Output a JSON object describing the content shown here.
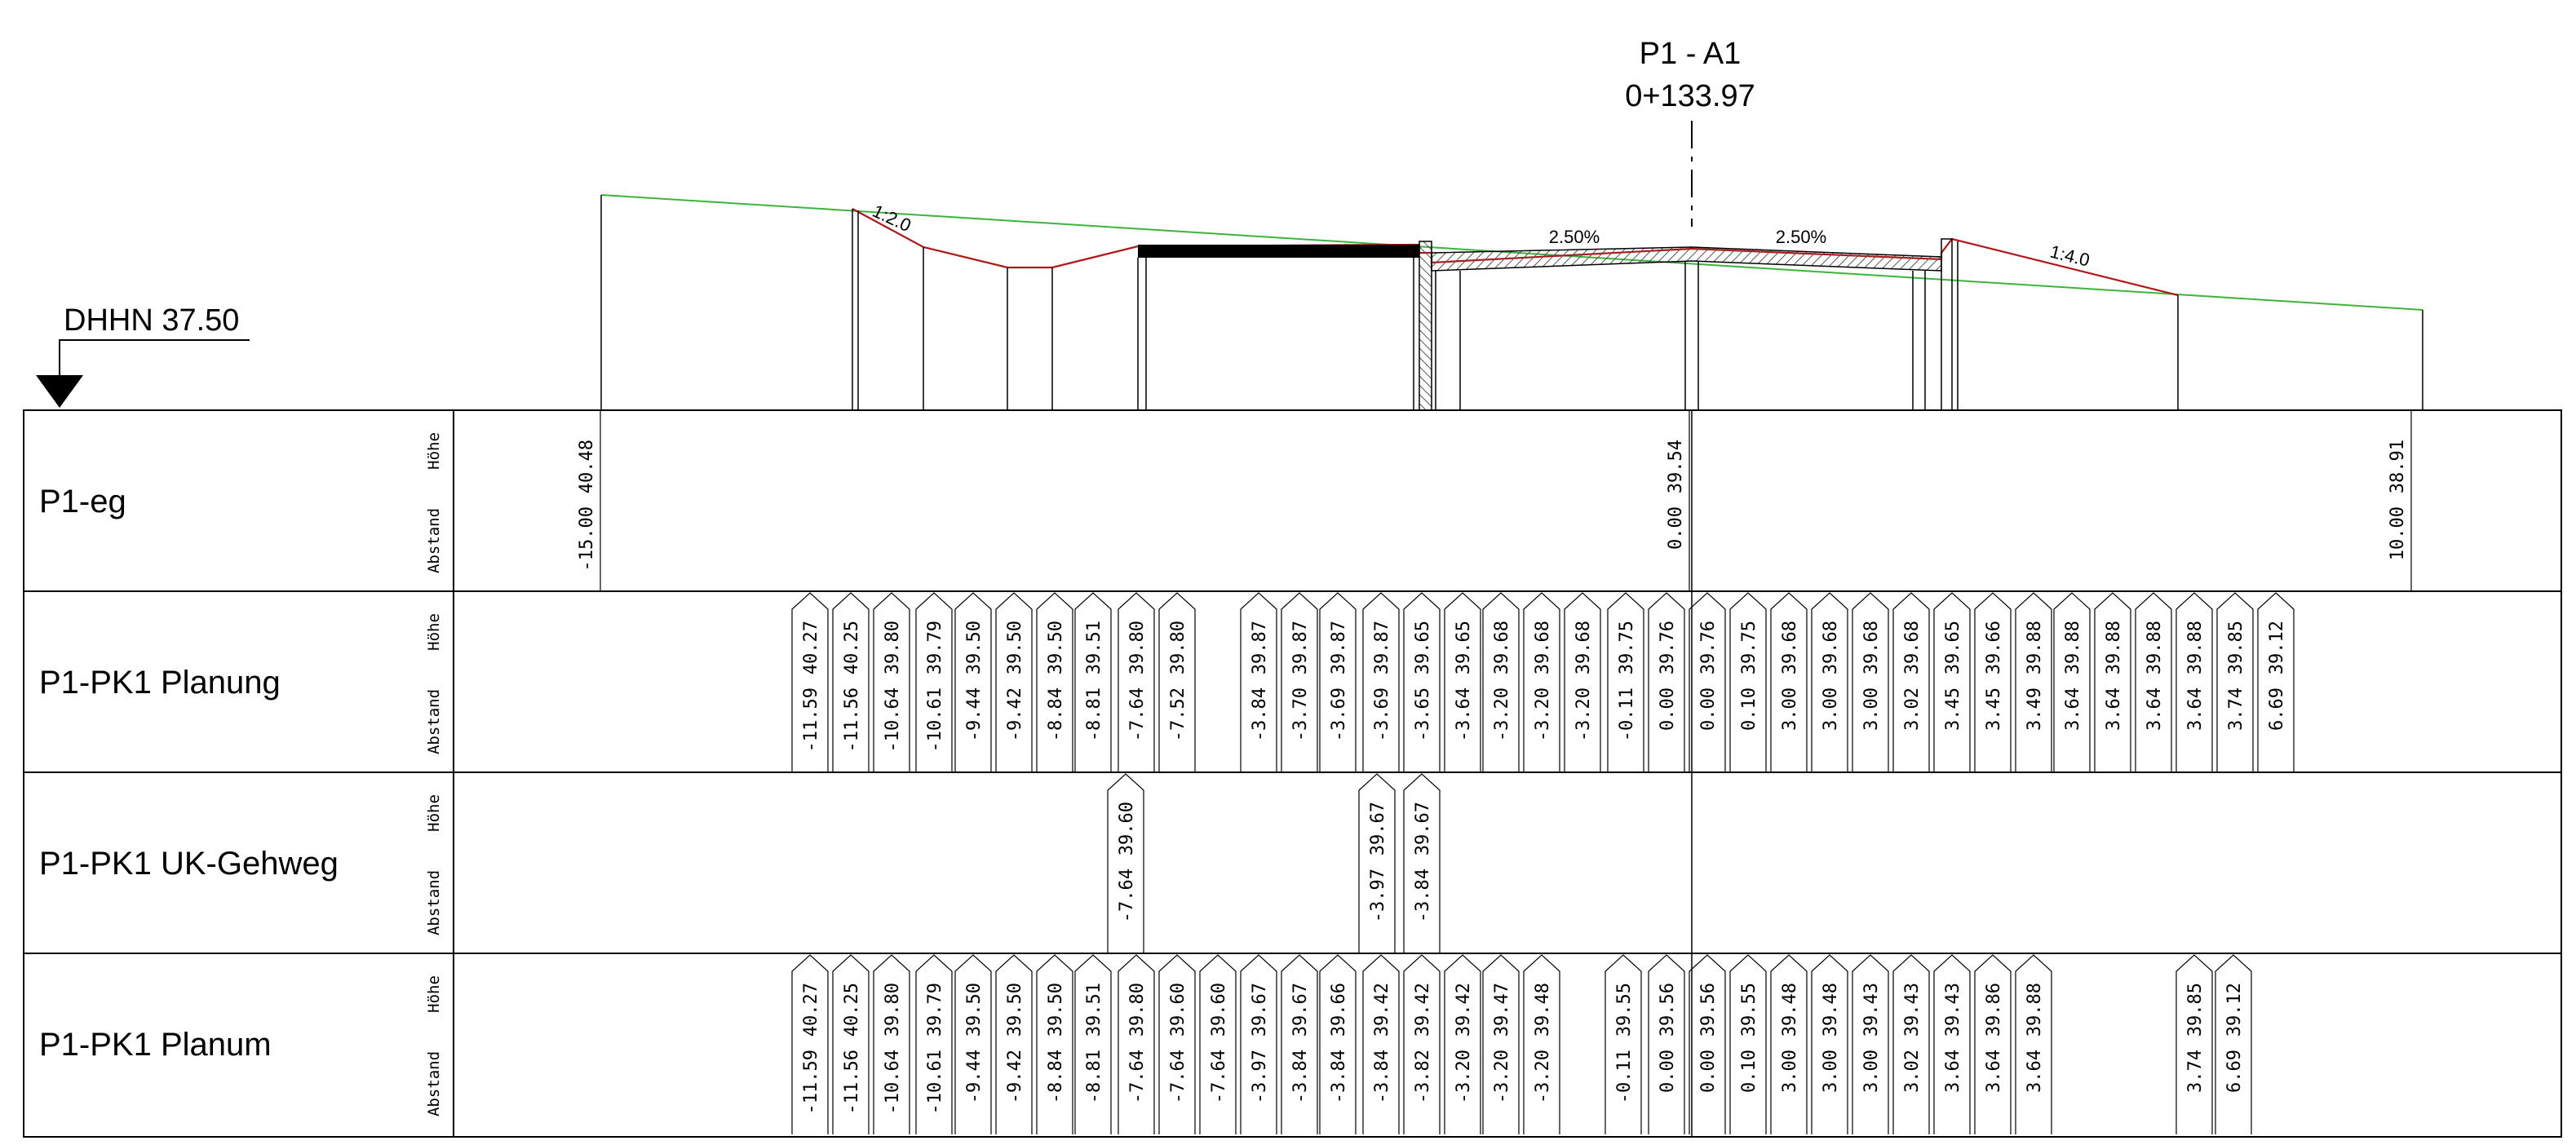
{
  "header": {
    "station_name": "P1 - A1",
    "station_value": "0+133.97"
  },
  "datum": {
    "label": "DHHN  37.50"
  },
  "profile": {
    "slope_labels": [
      "1:2.0",
      "2.50%",
      "2.50%",
      "1:4.0"
    ]
  },
  "band_labels": {
    "height": "Höhe",
    "distance": "Abstand"
  },
  "rows": [
    {
      "name": "P1-eg",
      "pairs": [
        [
          "-15.00",
          "40.48"
        ],
        [
          "0.00",
          "39.54"
        ],
        [
          "10.00",
          "38.91"
        ]
      ]
    },
    {
      "name": "P1-PK1 Planung",
      "pairs": [
        [
          "-11.59",
          "40.27"
        ],
        [
          "-11.56",
          "40.25"
        ],
        [
          "-10.64",
          "39.80"
        ],
        [
          "-10.61",
          "39.79"
        ],
        [
          "-9.44",
          "39.50"
        ],
        [
          "-9.42",
          "39.50"
        ],
        [
          "-8.84",
          "39.50"
        ],
        [
          "-8.81",
          "39.51"
        ],
        [
          "-7.64",
          "39.80"
        ],
        [
          "-7.52",
          "39.80"
        ],
        [
          "-3.84",
          "39.87"
        ],
        [
          "-3.70",
          "39.87"
        ],
        [
          "-3.69",
          "39.87"
        ],
        [
          "-3.69",
          "39.87"
        ],
        [
          "-3.65",
          "39.65"
        ],
        [
          "-3.64",
          "39.65"
        ],
        [
          "-3.20",
          "39.68"
        ],
        [
          "-3.20",
          "39.68"
        ],
        [
          "-3.20",
          "39.68"
        ],
        [
          "-0.11",
          "39.75"
        ],
        [
          "0.00",
          "39.76"
        ],
        [
          "0.00",
          "39.76"
        ],
        [
          "0.10",
          "39.75"
        ],
        [
          "3.00",
          "39.68"
        ],
        [
          "3.00",
          "39.68"
        ],
        [
          "3.00",
          "39.68"
        ],
        [
          "3.02",
          "39.68"
        ],
        [
          "3.45",
          "39.65"
        ],
        [
          "3.45",
          "39.66"
        ],
        [
          "3.49",
          "39.88"
        ],
        [
          "3.64",
          "39.88"
        ],
        [
          "3.64",
          "39.88"
        ],
        [
          "3.64",
          "39.88"
        ],
        [
          "3.64",
          "39.88"
        ],
        [
          "3.74",
          "39.85"
        ],
        [
          "6.69",
          "39.12"
        ]
      ]
    },
    {
      "name": "P1-PK1 UK-Gehweg",
      "pairs": [
        [
          "-7.64",
          "39.60"
        ],
        [
          "-3.97",
          "39.67"
        ],
        [
          "-3.84",
          "39.67"
        ]
      ]
    },
    {
      "name": "P1-PK1 Planum",
      "pairs": [
        [
          "-11.59",
          "40.27"
        ],
        [
          "-11.56",
          "40.25"
        ],
        [
          "-10.64",
          "39.80"
        ],
        [
          "-10.61",
          "39.79"
        ],
        [
          "-9.44",
          "39.50"
        ],
        [
          "-9.42",
          "39.50"
        ],
        [
          "-8.84",
          "39.50"
        ],
        [
          "-8.81",
          "39.51"
        ],
        [
          "-7.64",
          "39.80"
        ],
        [
          "-7.64",
          "39.60"
        ],
        [
          "-7.64",
          "39.60"
        ],
        [
          "-3.97",
          "39.67"
        ],
        [
          "-3.84",
          "39.67"
        ],
        [
          "-3.84",
          "39.66"
        ],
        [
          "-3.84",
          "39.42"
        ],
        [
          "-3.82",
          "39.42"
        ],
        [
          "-3.20",
          "39.42"
        ],
        [
          "-3.20",
          "39.47"
        ],
        [
          "-3.20",
          "39.48"
        ],
        [
          "-0.11",
          "39.55"
        ],
        [
          "0.00",
          "39.56"
        ],
        [
          "0.00",
          "39.56"
        ],
        [
          "0.10",
          "39.55"
        ],
        [
          "3.00",
          "39.48"
        ],
        [
          "3.00",
          "39.48"
        ],
        [
          "3.00",
          "39.43"
        ],
        [
          "3.02",
          "39.43"
        ],
        [
          "3.64",
          "39.43"
        ],
        [
          "3.64",
          "39.86"
        ],
        [
          "3.64",
          "39.88"
        ],
        [
          "3.74",
          "39.85"
        ],
        [
          "6.69",
          "39.12"
        ]
      ]
    }
  ],
  "colors": {
    "ink": "#000000",
    "terrain_line": "#3cb43c",
    "design_line": "#b01818",
    "hatch": "#555555"
  }
}
